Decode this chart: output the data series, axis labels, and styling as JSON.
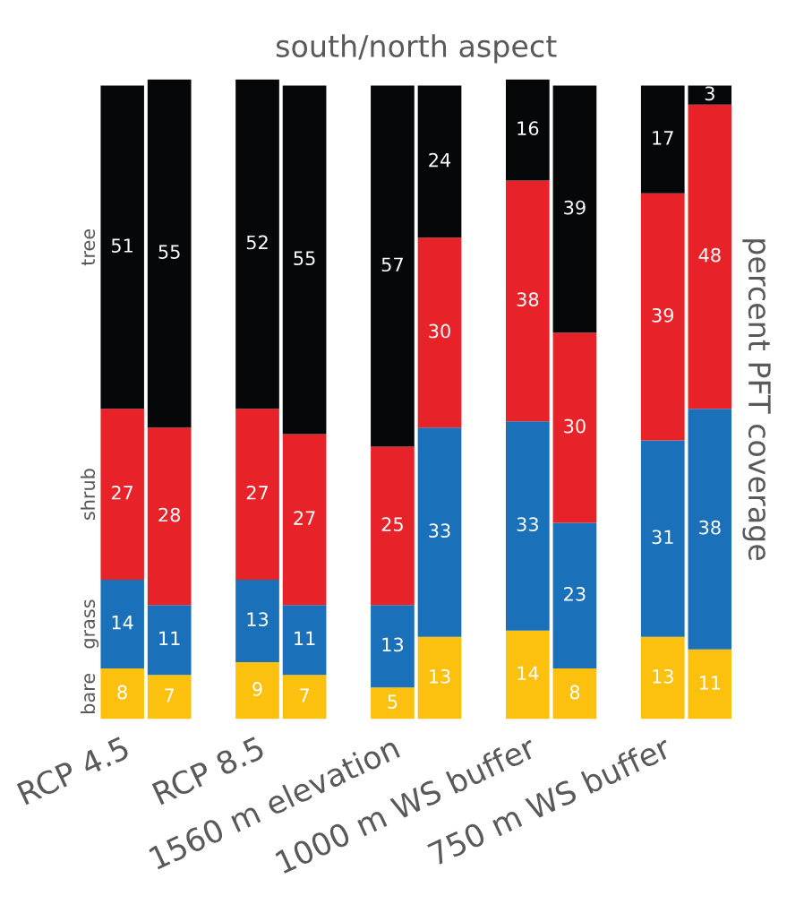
{
  "chart_data": {
    "type": "bar",
    "title": "south/north aspect",
    "ylabel": "percent PFT coverage",
    "categories": [
      "RCP 4.5",
      null,
      "RCP 8.5",
      null,
      "1560 m elevation",
      null,
      "1000 m WS buffer",
      null,
      "750 m WS buffer",
      null
    ],
    "stacked": true,
    "data_labels": true,
    "grid": false,
    "legend": false,
    "tick_labels": "x",
    "series": [
      {
        "name": "bare",
        "color": "#fcc00f",
        "values": [
          8,
          7,
          9,
          7,
          5,
          13,
          14,
          8,
          13,
          11
        ]
      },
      {
        "name": "grass",
        "color": "#1a70b9",
        "values": [
          14,
          11,
          13,
          11,
          13,
          33,
          33,
          23,
          31,
          38
        ]
      },
      {
        "name": "shrub",
        "color": "#e82229",
        "values": [
          27,
          28,
          27,
          27,
          25,
          30,
          38,
          30,
          39,
          48
        ]
      },
      {
        "name": "tree",
        "color": "#060709",
        "values": [
          51,
          55,
          52,
          55,
          57,
          24,
          16,
          39,
          17,
          3
        ]
      }
    ]
  }
}
